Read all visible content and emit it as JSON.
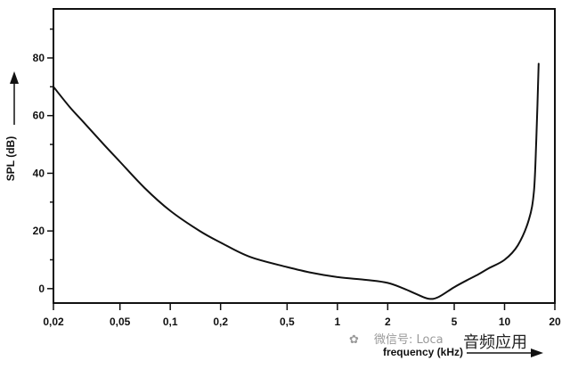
{
  "chart_data": {
    "type": "line",
    "xlabel": "frequency (kHz)",
    "ylabel": "SPL (dB)",
    "x_scale": "log",
    "xlim": [
      0.02,
      20
    ],
    "ylim": [
      -5,
      97
    ],
    "x_ticks": [
      {
        "value": 0.02,
        "label": "0,02"
      },
      {
        "value": 0.05,
        "label": "0,05"
      },
      {
        "value": 0.1,
        "label": "0,1"
      },
      {
        "value": 0.2,
        "label": "0,2"
      },
      {
        "value": 0.5,
        "label": "0,5"
      },
      {
        "value": 1,
        "label": "1"
      },
      {
        "value": 2,
        "label": "2"
      },
      {
        "value": 5,
        "label": "5"
      },
      {
        "value": 10,
        "label": "10"
      },
      {
        "value": 20,
        "label": "20"
      }
    ],
    "y_ticks": [
      {
        "value": 0,
        "label": "0"
      },
      {
        "value": 20,
        "label": "20"
      },
      {
        "value": 40,
        "label": "40"
      },
      {
        "value": 60,
        "label": "60"
      },
      {
        "value": 80,
        "label": "80"
      }
    ],
    "grid": false,
    "series": [
      {
        "name": "",
        "x": [
          0.02,
          0.025,
          0.03,
          0.04,
          0.05,
          0.07,
          0.1,
          0.15,
          0.2,
          0.3,
          0.5,
          0.7,
          1,
          1.5,
          2,
          2.5,
          3,
          3.5,
          4,
          5,
          6,
          7,
          8,
          10,
          12,
          14,
          15,
          15.5,
          16
        ],
        "y": [
          70,
          63,
          58,
          50,
          44,
          35,
          27,
          20,
          16,
          11,
          7.5,
          5.5,
          4,
          3,
          2,
          0,
          -2,
          -3.5,
          -3,
          0.5,
          3,
          5,
          7,
          10,
          15,
          24,
          34,
          52,
          78
        ]
      }
    ]
  },
  "watermark": {
    "prefix": "微信号: Loca",
    "overlay": "音频应用"
  },
  "colors": {
    "line": "#111111",
    "axis": "#111111",
    "background": "#ffffff"
  }
}
